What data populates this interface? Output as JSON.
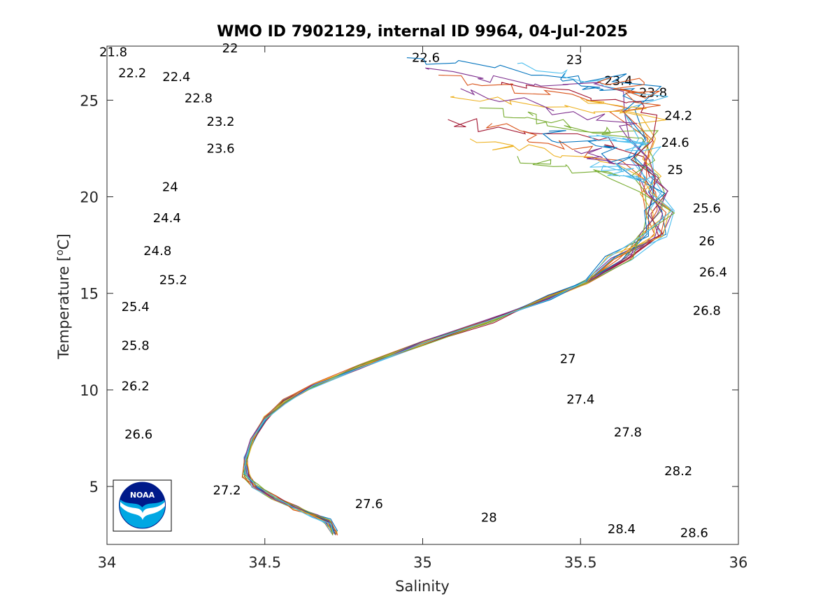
{
  "chart_data": {
    "type": "line",
    "title": "WMO ID 7902129, internal ID 9964, 04-Jul-2025",
    "xlabel": "Salinity",
    "ylabel": "Temperature [°C]",
    "ylabel_unit": "o",
    "xlim": [
      34,
      36
    ],
    "ylim": [
      2,
      27.8
    ],
    "xticks": [
      34,
      34.5,
      35,
      35.5,
      36
    ],
    "xtick_labels": [
      "34",
      "34.5",
      "35",
      "35.5",
      "36"
    ],
    "yticks": [
      5,
      10,
      15,
      20,
      25
    ],
    "ytick_labels": [
      "5",
      "10",
      "15",
      "20",
      "25"
    ],
    "grid": false,
    "logo": "noaa-logo",
    "density_contours": {
      "levels": [
        21.8,
        22,
        22.2,
        22.4,
        22.6,
        22.8,
        23,
        23.2,
        23.4,
        23.6,
        23.8,
        24,
        24.2,
        24.4,
        24.6,
        24.8,
        25,
        25.2,
        25.4,
        25.6,
        25.8,
        26,
        26.2,
        26.4,
        26.6,
        26.8,
        27,
        27.2,
        27.4,
        27.6,
        27.8,
        28,
        28.2,
        28.4,
        28.6
      ],
      "labels": [
        {
          "text": "21.8",
          "s": 34.02,
          "t": 27.5
        },
        {
          "text": "22",
          "s": 34.39,
          "t": 27.7
        },
        {
          "text": "22.2",
          "s": 34.08,
          "t": 26.4
        },
        {
          "text": "22.4",
          "s": 34.22,
          "t": 26.2
        },
        {
          "text": "22.6",
          "s": 35.01,
          "t": 27.2
        },
        {
          "text": "22.8",
          "s": 34.29,
          "t": 25.1
        },
        {
          "text": "23",
          "s": 35.48,
          "t": 27.1
        },
        {
          "text": "23.2",
          "s": 34.36,
          "t": 23.9
        },
        {
          "text": "23.4",
          "s": 35.62,
          "t": 26.0
        },
        {
          "text": "23.6",
          "s": 34.36,
          "t": 22.5
        },
        {
          "text": "23.8",
          "s": 35.73,
          "t": 25.4
        },
        {
          "text": "24",
          "s": 34.2,
          "t": 20.5
        },
        {
          "text": "24.2",
          "s": 35.81,
          "t": 24.2
        },
        {
          "text": "24.4",
          "s": 34.19,
          "t": 18.9
        },
        {
          "text": "24.6",
          "s": 35.8,
          "t": 22.8
        },
        {
          "text": "24.8",
          "s": 34.16,
          "t": 17.2
        },
        {
          "text": "25",
          "s": 35.8,
          "t": 21.4
        },
        {
          "text": "25.2",
          "s": 34.21,
          "t": 15.7
        },
        {
          "text": "25.4",
          "s": 34.09,
          "t": 14.3
        },
        {
          "text": "25.6",
          "s": 35.9,
          "t": 19.4
        },
        {
          "text": "25.8",
          "s": 34.09,
          "t": 12.3
        },
        {
          "text": "26",
          "s": 35.9,
          "t": 17.7
        },
        {
          "text": "26.2",
          "s": 34.09,
          "t": 10.2
        },
        {
          "text": "26.4",
          "s": 35.92,
          "t": 16.1
        },
        {
          "text": "26.6",
          "s": 34.1,
          "t": 7.7
        },
        {
          "text": "26.8",
          "s": 35.9,
          "t": 14.1
        },
        {
          "text": "27",
          "s": 35.46,
          "t": 11.6
        },
        {
          "text": "27.2",
          "s": 34.38,
          "t": 4.8
        },
        {
          "text": "27.4",
          "s": 35.5,
          "t": 9.5
        },
        {
          "text": "27.6",
          "s": 34.83,
          "t": 4.1
        },
        {
          "text": "27.8",
          "s": 35.65,
          "t": 7.8
        },
        {
          "text": "28",
          "s": 35.21,
          "t": 3.4
        },
        {
          "text": "28.2",
          "s": 35.81,
          "t": 5.8
        },
        {
          "text": "28.4",
          "s": 35.63,
          "t": 2.8
        },
        {
          "text": "28.6",
          "s": 35.86,
          "t": 2.6
        }
      ]
    },
    "series_shape": {
      "mean_profile": [
        [
          35.02,
          27.0
        ],
        [
          35.15,
          26.8
        ],
        [
          35.35,
          26.5
        ],
        [
          35.55,
          26.1
        ],
        [
          35.7,
          25.7
        ],
        [
          35.68,
          24.5
        ],
        [
          35.69,
          23.0
        ],
        [
          35.7,
          22.0
        ],
        [
          35.71,
          21.0
        ],
        [
          35.73,
          20.2
        ],
        [
          35.75,
          19.2
        ],
        [
          35.73,
          18.0
        ],
        [
          35.62,
          16.8
        ],
        [
          35.52,
          15.6
        ],
        [
          35.4,
          14.8
        ],
        [
          35.22,
          13.6
        ],
        [
          35.0,
          12.4
        ],
        [
          34.8,
          11.2
        ],
        [
          34.65,
          10.2
        ],
        [
          34.56,
          9.4
        ],
        [
          34.5,
          8.5
        ],
        [
          34.46,
          7.4
        ],
        [
          34.44,
          6.4
        ],
        [
          34.44,
          5.6
        ],
        [
          34.47,
          5.0
        ],
        [
          34.53,
          4.4
        ],
        [
          34.6,
          3.9
        ],
        [
          34.66,
          3.5
        ],
        [
          34.7,
          3.2
        ],
        [
          34.72,
          2.6
        ]
      ],
      "surface_variants": [
        {
          "start": [
            34.95,
            27.2
          ],
          "mid": [
            35.7,
            25.9
          ]
        },
        {
          "start": [
            35.05,
            26.3
          ],
          "mid": [
            35.65,
            24.6
          ]
        },
        {
          "start": [
            35.1,
            25.2
          ],
          "mid": [
            35.72,
            23.9
          ]
        },
        {
          "start": [
            35.02,
            26.6
          ],
          "mid": [
            35.6,
            25.5
          ]
        },
        {
          "start": [
            35.18,
            24.6
          ],
          "mid": [
            35.69,
            23.2
          ]
        },
        {
          "start": [
            35.3,
            26.9
          ],
          "mid": [
            35.75,
            25.3
          ]
        },
        {
          "start": [
            35.08,
            24.0
          ],
          "mid": [
            35.62,
            22.8
          ]
        },
        {
          "start": [
            35.45,
            26.4
          ],
          "mid": [
            35.7,
            24.9
          ]
        },
        {
          "start": [
            35.22,
            23.8
          ],
          "mid": [
            35.6,
            22.0
          ]
        },
        {
          "start": [
            35.5,
            25.1
          ],
          "mid": [
            35.73,
            24.1
          ]
        },
        {
          "start": [
            35.12,
            25.6
          ],
          "mid": [
            35.68,
            23.6
          ]
        },
        {
          "start": [
            35.35,
            24.2
          ],
          "mid": [
            35.64,
            23.0
          ]
        },
        {
          "start": [
            35.55,
            23.2
          ],
          "mid": [
            35.72,
            22.4
          ]
        },
        {
          "start": [
            35.25,
            25.8
          ],
          "mid": [
            35.78,
            24.5
          ]
        },
        {
          "start": [
            35.4,
            23.4
          ],
          "mid": [
            35.66,
            21.8
          ]
        },
        {
          "start": [
            35.6,
            26.2
          ],
          "mid": [
            35.72,
            25.0
          ]
        },
        {
          "start": [
            35.15,
            23.0
          ],
          "mid": [
            35.58,
            21.9
          ]
        },
        {
          "start": [
            35.48,
            22.4
          ],
          "mid": [
            35.68,
            21.5
          ]
        },
        {
          "start": [
            35.3,
            22.1
          ],
          "mid": [
            35.62,
            21.2
          ]
        },
        {
          "start": [
            35.56,
            21.8
          ],
          "mid": [
            35.7,
            20.8
          ]
        }
      ],
      "colors": [
        "#0072BD",
        "#D95319",
        "#EDB120",
        "#7E2F8E",
        "#77AC30",
        "#4DBEEE",
        "#A2142F"
      ]
    }
  }
}
